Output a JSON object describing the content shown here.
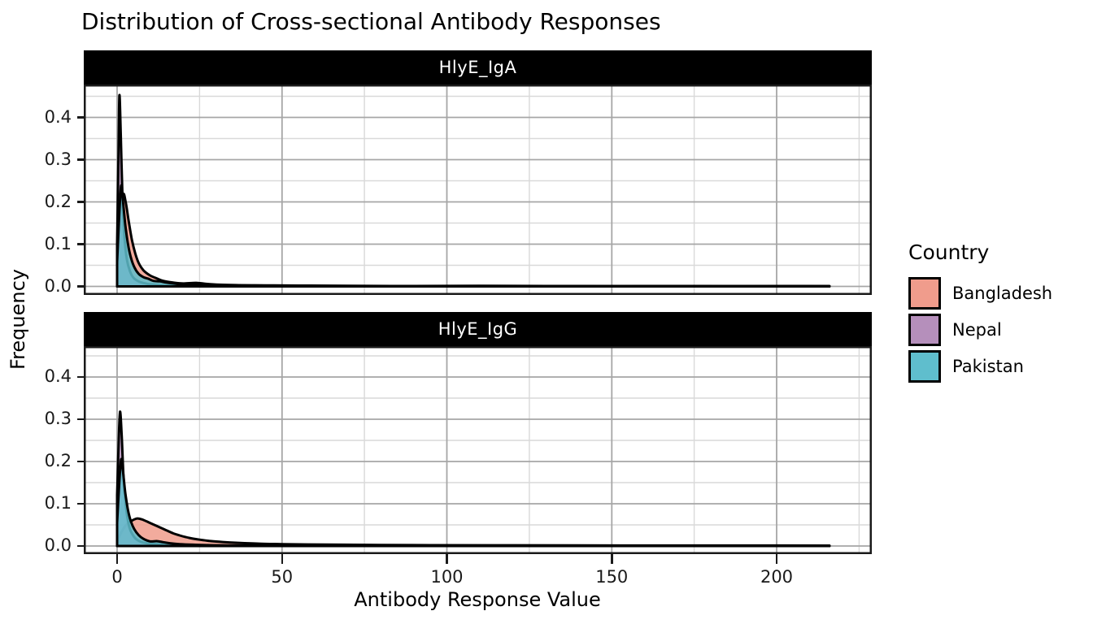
{
  "title": "Distribution of Cross-sectional Antibody Responses",
  "legend": {
    "title": "Country",
    "entries": [
      {
        "label": "Bangladesh",
        "color": "#F09C8C"
      },
      {
        "label": "Nepal",
        "color": "#B58FBB"
      },
      {
        "label": "Pakistan",
        "color": "#5FBECD"
      }
    ]
  },
  "colors": {
    "outline": "#000000",
    "panel_border": "#1a1a1a",
    "grid_major": "#a6a6a6",
    "grid_minor": "#d9d9d9",
    "strip_bg": "#000000",
    "strip_fg": "#ffffff",
    "fill_opacity": 0.85
  },
  "chart_data": {
    "type": "area",
    "subtype": "overlaid-density",
    "title": "Distribution of Cross-sectional Antibody Responses",
    "xlabel": "Antibody Response Value",
    "ylabel": "Frequency",
    "legend_title": "Country",
    "legend_position": "right",
    "grid": true,
    "x_ticks": [
      0,
      50,
      100,
      150,
      200
    ],
    "x_minor": [
      25,
      75,
      125,
      175,
      225
    ],
    "y_ticks": [
      0.0,
      0.1,
      0.2,
      0.3,
      0.4
    ],
    "y_minor": [
      0.05,
      0.15,
      0.25,
      0.35,
      0.45
    ],
    "xlim": [
      -10.1,
      228.8
    ],
    "ylim": [
      -0.0202,
      0.478
    ],
    "facets": [
      {
        "label": "HlyE_IgA",
        "series": [
          {
            "name": "Bangladesh",
            "points": [
              [
                0,
                0.046
              ],
              [
                0.8,
                0.13
              ],
              [
                1.8,
                0.215
              ],
              [
                2.6,
                0.2
              ],
              [
                3.5,
                0.155
              ],
              [
                4.5,
                0.11
              ],
              [
                5.5,
                0.078
              ],
              [
                6.5,
                0.056
              ],
              [
                8,
                0.038
              ],
              [
                10,
                0.026
              ],
              [
                12,
                0.019
              ],
              [
                14,
                0.013
              ],
              [
                17,
                0.009
              ],
              [
                20,
                0.007
              ],
              [
                24,
                0.0085
              ],
              [
                27,
                0.006
              ],
              [
                31,
                0.004
              ],
              [
                36,
                0.003
              ],
              [
                45,
                0.0025
              ],
              [
                55,
                0.002
              ],
              [
                70,
                0.0015
              ],
              [
                90,
                0.001
              ],
              [
                110,
                0.0015
              ],
              [
                130,
                0.001
              ],
              [
                150,
                0.0008
              ],
              [
                170,
                0.001
              ],
              [
                190,
                0.0008
              ],
              [
                205,
                0.001
              ],
              [
                216,
                0.0008
              ]
            ]
          },
          {
            "name": "Nepal",
            "points": [
              [
                0,
                0.1
              ],
              [
                0.4,
                0.3
              ],
              [
                0.7,
                0.452
              ],
              [
                1.1,
                0.36
              ],
              [
                1.6,
                0.22
              ],
              [
                2.2,
                0.12
              ],
              [
                3,
                0.062
              ],
              [
                4,
                0.034
              ],
              [
                5,
                0.02
              ],
              [
                6.5,
                0.012
              ],
              [
                8,
                0.008
              ],
              [
                10,
                0.005
              ],
              [
                13,
                0.003
              ],
              [
                17,
                0.002
              ],
              [
                22,
                0.0015
              ],
              [
                30,
                0.001
              ],
              [
                45,
                0.0008
              ],
              [
                70,
                0.0006
              ],
              [
                100,
                0.0005
              ],
              [
                140,
                0.0004
              ],
              [
                180,
                0.0004
              ],
              [
                216,
                0.0003
              ]
            ]
          },
          {
            "name": "Pakistan",
            "points": [
              [
                0,
                0.058
              ],
              [
                0.6,
                0.16
              ],
              [
                1.2,
                0.238
              ],
              [
                1.8,
                0.2
              ],
              [
                2.5,
                0.145
              ],
              [
                3.3,
                0.1
              ],
              [
                4.2,
                0.068
              ],
              [
                5.2,
                0.046
              ],
              [
                6.5,
                0.03
              ],
              [
                8,
                0.022
              ],
              [
                9.5,
                0.018
              ],
              [
                11,
                0.013
              ],
              [
                13,
                0.012
              ],
              [
                15,
                0.009
              ],
              [
                18,
                0.006
              ],
              [
                21,
                0.004
              ],
              [
                25,
                0.0045
              ],
              [
                28,
                0.003
              ],
              [
                33,
                0.002
              ],
              [
                40,
                0.0015
              ],
              [
                55,
                0.001
              ],
              [
                80,
                0.0008
              ],
              [
                120,
                0.0006
              ],
              [
                160,
                0.0005
              ],
              [
                200,
                0.0005
              ],
              [
                216,
                0.0004
              ]
            ]
          }
        ]
      },
      {
        "label": "HlyE_IgG",
        "series": [
          {
            "name": "Bangladesh",
            "points": [
              [
                0,
                0.01
              ],
              [
                1,
                0.028
              ],
              [
                2,
                0.042
              ],
              [
                3,
                0.052
              ],
              [
                4.5,
                0.06
              ],
              [
                6,
                0.065
              ],
              [
                7.5,
                0.063
              ],
              [
                9,
                0.058
              ],
              [
                11,
                0.051
              ],
              [
                13,
                0.044
              ],
              [
                15,
                0.037
              ],
              [
                17,
                0.03
              ],
              [
                19,
                0.025
              ],
              [
                22,
                0.019
              ],
              [
                25,
                0.015
              ],
              [
                28,
                0.012
              ],
              [
                31,
                0.01
              ],
              [
                34,
                0.0085
              ],
              [
                38,
                0.007
              ],
              [
                43,
                0.0055
              ],
              [
                50,
                0.0045
              ],
              [
                58,
                0.0037
              ],
              [
                68,
                0.003
              ],
              [
                80,
                0.0025
              ],
              [
                95,
                0.002
              ],
              [
                115,
                0.0017
              ],
              [
                140,
                0.0014
              ],
              [
                170,
                0.0012
              ],
              [
                200,
                0.0012
              ],
              [
                216,
                0.001
              ]
            ]
          },
          {
            "name": "Nepal",
            "points": [
              [
                0,
                0.12
              ],
              [
                0.5,
                0.25
              ],
              [
                0.9,
                0.318
              ],
              [
                1.4,
                0.26
              ],
              [
                2,
                0.155
              ],
              [
                2.8,
                0.085
              ],
              [
                3.6,
                0.048
              ],
              [
                4.6,
                0.028
              ],
              [
                6,
                0.015
              ],
              [
                8,
                0.008
              ],
              [
                11,
                0.005
              ],
              [
                15,
                0.003
              ],
              [
                20,
                0.002
              ],
              [
                28,
                0.0012
              ],
              [
                40,
                0.0008
              ],
              [
                60,
                0.0006
              ],
              [
                100,
                0.0005
              ],
              [
                150,
                0.0004
              ],
              [
                216,
                0.0003
              ]
            ]
          },
          {
            "name": "Pakistan",
            "points": [
              [
                0,
                0.055
              ],
              [
                0.6,
                0.14
              ],
              [
                1.2,
                0.205
              ],
              [
                1.8,
                0.175
              ],
              [
                2.5,
                0.125
              ],
              [
                3.3,
                0.085
              ],
              [
                4.2,
                0.058
              ],
              [
                5.2,
                0.04
              ],
              [
                6.5,
                0.026
              ],
              [
                8,
                0.017
              ],
              [
                10,
                0.011
              ],
              [
                12,
                0.0115
              ],
              [
                14,
                0.009
              ],
              [
                16,
                0.0065
              ],
              [
                19,
                0.0045
              ],
              [
                23,
                0.003
              ],
              [
                28,
                0.002
              ],
              [
                35,
                0.0013
              ],
              [
                50,
                0.0009
              ],
              [
                80,
                0.0007
              ],
              [
                120,
                0.0005
              ],
              [
                170,
                0.0004
              ],
              [
                216,
                0.0004
              ]
            ]
          }
        ]
      }
    ]
  }
}
